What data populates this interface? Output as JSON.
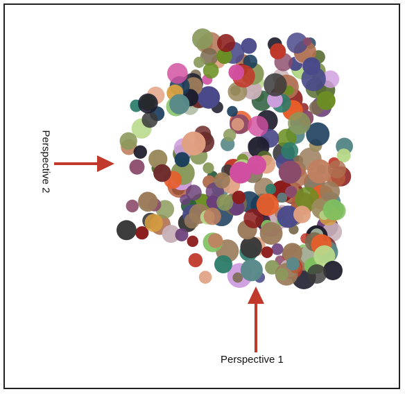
{
  "labels": {
    "perspective_1": "Perspective 1",
    "perspective_2": "Perspective 2"
  },
  "colors": {
    "arrow": "#c0392b",
    "border": "#222222",
    "background": "#ffffff"
  },
  "circle_palette": [
    "#8a9a5b",
    "#6b8e23",
    "#9c8b5e",
    "#7a6a4f",
    "#556b2f",
    "#b35a3a",
    "#c0392b",
    "#8b1a1a",
    "#6e2c2c",
    "#e85d2a",
    "#2e7d6b",
    "#1a3d5c",
    "#4a4a8a",
    "#6a3f7a",
    "#d14fa0",
    "#b8d98a",
    "#a9b8a0",
    "#c9b0b8",
    "#d0a0e0",
    "#e0a080",
    "#9a7b5a",
    "#3a3a3a",
    "#1e1e2e",
    "#2f5f3f",
    "#7fbf5f",
    "#d8a040",
    "#b07050",
    "#8a4a6a",
    "#5a8a8a",
    "#c08060"
  ]
}
